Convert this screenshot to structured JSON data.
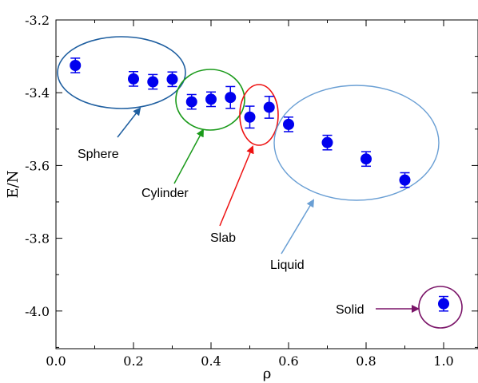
{
  "chart_data": {
    "type": "scatter",
    "title": "",
    "xlabel": "ρ",
    "ylabel": "E/N",
    "xlim": [
      0.0,
      1.1
    ],
    "ylim": [
      -4.1,
      -3.2
    ],
    "x_ticks": [
      "0.0",
      "0.2",
      "0.4",
      "0.6",
      "0.8",
      "1.0"
    ],
    "y_ticks": [
      "-3.2",
      "-3.4",
      "-3.6",
      "-3.8",
      "-4.0"
    ],
    "grid": false,
    "marker_color": "#0000ee",
    "points": [
      {
        "x": 0.05,
        "y": -3.325,
        "err": 0.02
      },
      {
        "x": 0.2,
        "y": -3.362,
        "err": 0.02
      },
      {
        "x": 0.25,
        "y": -3.37,
        "err": 0.02
      },
      {
        "x": 0.3,
        "y": -3.363,
        "err": 0.02
      },
      {
        "x": 0.35,
        "y": -3.425,
        "err": 0.02
      },
      {
        "x": 0.4,
        "y": -3.418,
        "err": 0.02
      },
      {
        "x": 0.45,
        "y": -3.413,
        "err": 0.03
      },
      {
        "x": 0.5,
        "y": -3.467,
        "err": 0.03
      },
      {
        "x": 0.55,
        "y": -3.44,
        "err": 0.03
      },
      {
        "x": 0.6,
        "y": -3.487,
        "err": 0.02
      },
      {
        "x": 0.7,
        "y": -3.537,
        "err": 0.02
      },
      {
        "x": 0.8,
        "y": -3.582,
        "err": 0.02
      },
      {
        "x": 0.9,
        "y": -3.64,
        "err": 0.02
      },
      {
        "x": 1.0,
        "y": -3.98,
        "err": 0.02
      }
    ],
    "annotations": [
      {
        "label": "Sphere",
        "color": "#1f5fa0"
      },
      {
        "label": "Cylinder",
        "color": "#1a9a1a"
      },
      {
        "label": "Slab",
        "color": "#ee1111"
      },
      {
        "label": "Liquid",
        "color": "#6a9fd4"
      },
      {
        "label": "Solid",
        "color": "#7a1468"
      }
    ]
  }
}
